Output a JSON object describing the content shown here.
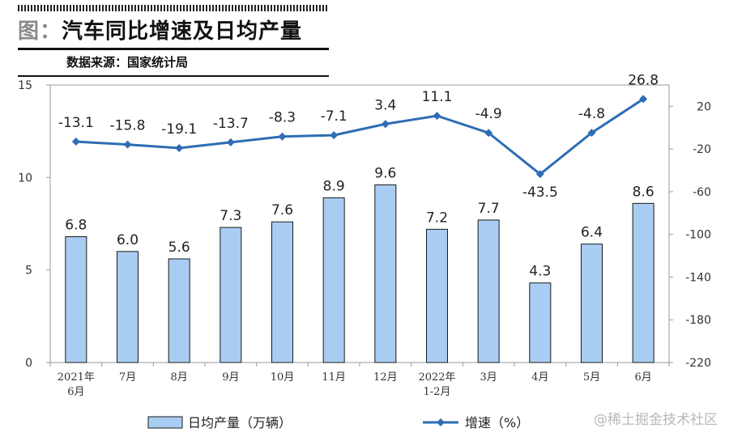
{
  "header": {
    "title_prefix": "图：",
    "title": "汽车同比增速及日均产量",
    "source": "数据来源：国家统计局"
  },
  "watermark": "@稀土掘金技术社区",
  "chart_data": {
    "type": "bar+line",
    "categories": [
      [
        "2021年",
        "6月"
      ],
      [
        "7月"
      ],
      [
        "8月"
      ],
      [
        "9月"
      ],
      [
        "10月"
      ],
      [
        "11月"
      ],
      [
        "12月"
      ],
      [
        "2022年",
        "1-2月"
      ],
      [
        "3月"
      ],
      [
        "4月"
      ],
      [
        "5月"
      ],
      [
        "6月"
      ]
    ],
    "series": [
      {
        "name": "日均产量（万辆）",
        "type": "bar",
        "axis": "left",
        "color": "#a9cdf2",
        "values": [
          6.8,
          6.0,
          5.6,
          7.3,
          7.6,
          8.9,
          9.6,
          7.2,
          7.7,
          4.3,
          6.4,
          8.6
        ],
        "labels": [
          "6.8",
          "6.0",
          "5.6",
          "7.3",
          "7.6",
          "8.9",
          "9.6",
          "7.2",
          "7.7",
          "4.3",
          "6.4",
          "8.6"
        ]
      },
      {
        "name": "增速（%）",
        "type": "line",
        "axis": "right",
        "color": "#2e6db4",
        "values": [
          -13.1,
          -15.8,
          -19.1,
          -13.7,
          -8.3,
          -7.1,
          3.4,
          11.1,
          -4.9,
          -43.5,
          -4.8,
          26.8
        ],
        "labels": [
          "-13.1",
          "-15.8",
          "-19.1",
          "-13.7",
          "-8.3",
          "-7.1",
          "3.4",
          "11.1",
          "-4.9",
          "-43.5",
          "-4.8",
          "26.8"
        ]
      }
    ],
    "y_left": {
      "min": 0,
      "max": 15,
      "ticks": [
        "0",
        "5",
        "10",
        "15"
      ]
    },
    "y_right": {
      "min": -220,
      "max": 40,
      "ticks": [
        "20",
        "-20",
        "-60",
        "-100",
        "-140",
        "-180",
        "-220"
      ]
    },
    "legend_position": "bottom",
    "grid": false
  }
}
